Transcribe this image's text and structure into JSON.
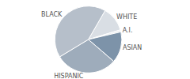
{
  "chart_data": {
    "type": "pie",
    "categories": [
      "WHITE",
      "A.I.",
      "ASIAN",
      "HISPANIC",
      "BLACK"
    ],
    "values": [
      12,
      1,
      15,
      30,
      42
    ],
    "colors": [
      "#d9dee4",
      "#eef0f3",
      "#7d93a9",
      "#9eacbb",
      "#b6bfca"
    ]
  }
}
